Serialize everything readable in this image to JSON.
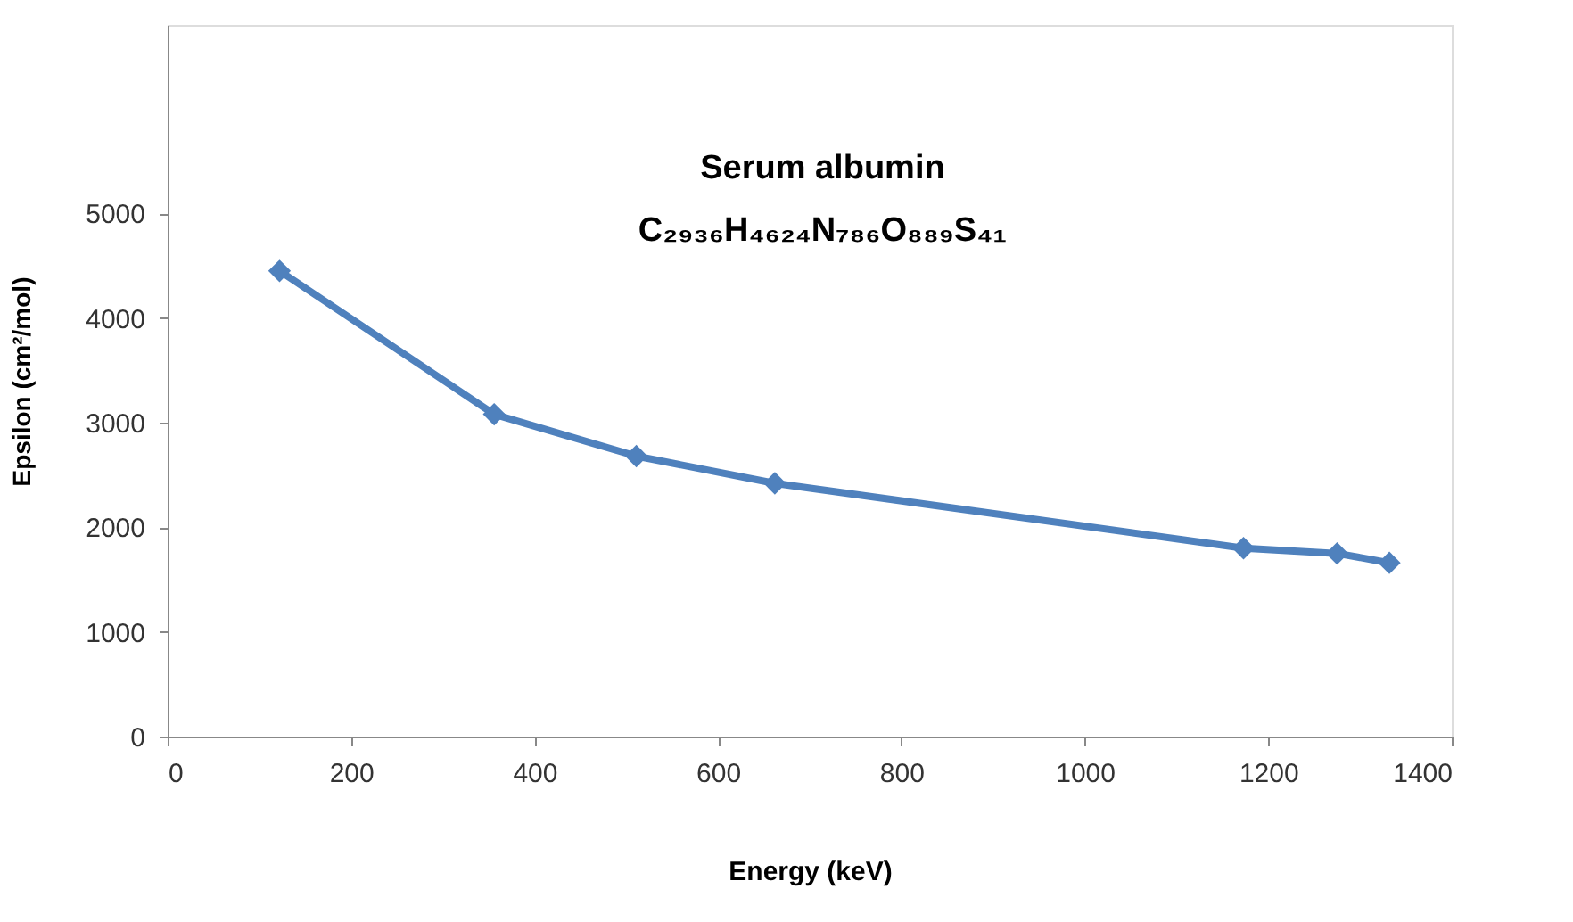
{
  "chart_data": {
    "type": "line",
    "xlabel": "Energy (keV)",
    "ylabel": "Epsilon  (cm²/mol)",
    "annotations": [
      "Serum albumin",
      "C₂₉₃₆H₄₆₂₄N₇₈₆O₈₈₉S₄₁"
    ],
    "x": [
      122,
      356,
      511,
      662,
      1173,
      1275,
      1332
    ],
    "series": [
      {
        "color": "#4f81bd",
        "values": [
          4450,
          3080,
          2680,
          2420,
          1800,
          1750,
          1660
        ]
      }
    ],
    "xlim": [
      0,
      1400
    ],
    "xticks": [
      0,
      200,
      400,
      600,
      800,
      1000,
      1200,
      1400
    ],
    "ylim": [
      0,
      6800
    ],
    "yticks": [
      0,
      1000,
      2000,
      3000,
      4000,
      5000
    ],
    "grid": false,
    "marker": "diamond",
    "line_style": "solid"
  }
}
